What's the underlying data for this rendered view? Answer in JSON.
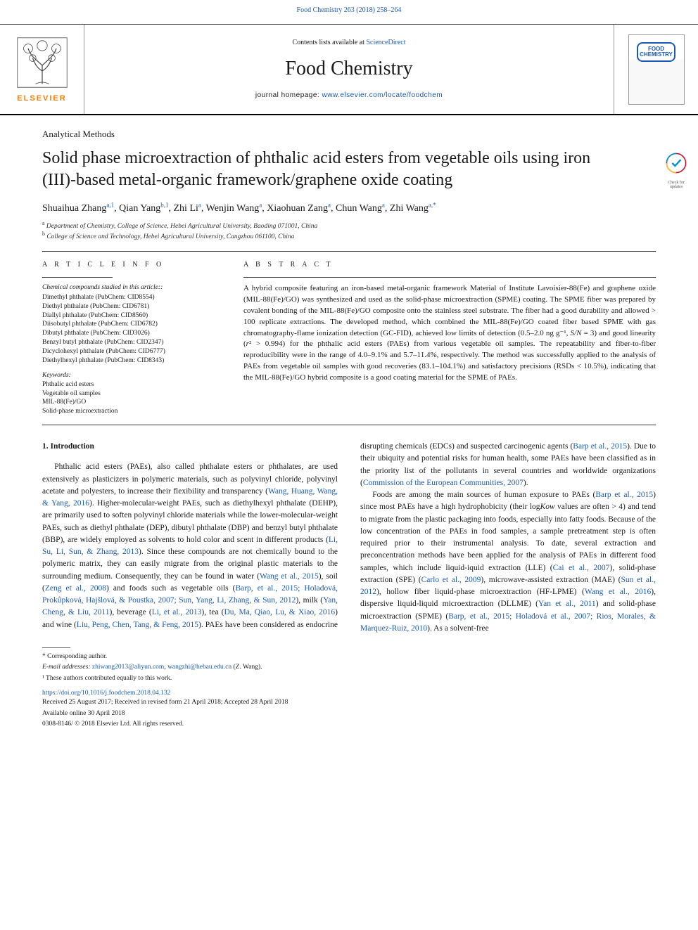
{
  "header": {
    "top_citation": "Food Chemistry 263 (2018) 258–264",
    "contents_prefix": "Contents lists available at ",
    "contents_link": "ScienceDirect",
    "journal": "Food Chemistry",
    "homepage_prefix": "journal homepage: ",
    "homepage_url": "www.elsevier.com/locate/foodchem",
    "publisher_mark": "ELSEVIER",
    "cover_text": "FOOD\nCHEMISTRY"
  },
  "section": "Analytical Methods",
  "title": "Solid phase microextraction of phthalic acid esters from vegetable oils using iron (III)-based metal-organic framework/graphene oxide coating",
  "crossmark": "Check for updates",
  "authors_html": "Shuaihua Zhang<sup>a,1</sup>, Qian Yang<sup>b,1</sup>, Zhi Li<sup>a</sup>, Wenjin Wang<sup>a</sup>, Xiaohuan Zang<sup>a</sup>, Chun Wang<sup>a</sup>, Zhi Wang<sup>a,*</sup>",
  "affiliations": [
    {
      "sup": "a",
      "text": "Department of Chemistry, College of Science, Hebei Agricultural University, Baoding 071001, China"
    },
    {
      "sup": "b",
      "text": "College of Science and Technology, Hebei Agricultural University, Cangzhou 061100, China"
    }
  ],
  "article_info_label": "A R T I C L E  I N F O",
  "abstract_label": "A B S T R A C T",
  "compounds_heading": "Chemical compounds studied in this article::",
  "compounds": [
    "Dimethyl phthalate (PubChem: CID8554)",
    "Diethyl phthalate (PubChem: CID6781)",
    "Diallyl phthalate (PubChem: CID8560)",
    "Diisobutyl phthalate (PubChem: CID6782)",
    "Dibutyl phthalate (PubChem: CID3026)",
    "Benzyl butyl phthalate (PubChem: CID2347)",
    "Dicyclohexyl phthalate (PubChem: CID6777)",
    "Diethylhexyl phthalate (PubChem: CID8343)"
  ],
  "keywords_heading": "Keywords:",
  "keywords": [
    "Phthalic acid esters",
    "Vegetable oil samples",
    "MIL-88(Fe)/GO",
    "Solid-phase microextraction"
  ],
  "abstract": "A hybrid composite featuring an iron-based metal-organic framework Material of Institute Lavoisier-88(Fe) and graphene oxide (MIL-88(Fe)/GO) was synthesized and used as the solid-phase microextraction (SPME) coating. The SPME fiber was prepared by covalent bonding of the MIL-88(Fe)/GO composite onto the stainless steel substrate. The fiber had a good durability and allowed > 100 replicate extractions. The developed method, which combined the MIL-88(Fe)/GO coated fiber based SPME with gas chromatography-flame ionization detection (GC-FID), achieved low limits of detection (0.5–2.0 ng g⁻¹, S/N = 3) and good linearity (r² > 0.994) for the phthalic acid esters (PAEs) from various vegetable oil samples. The repeatability and fiber-to-fiber reproducibility were in the range of 4.0–9.1% and 5.7–11.4%, respectively. The method was successfully applied to the analysis of PAEs from vegetable oil samples with good recoveries (83.1–104.1%) and satisfactory precisions (RSDs < 10.5%), indicating that the MIL-88(Fe)/GO hybrid composite is a good coating material for the SPME of PAEs.",
  "intro_heading": "1. Introduction",
  "intro_para1_a": "Phthalic acid esters (PAEs), also called phthalate esters or phthalates, are used extensively as plasticizers in polymeric materials, such as polyvinyl chloride, polyvinyl acetate and polyesters, to increase their flexibility and transparency (",
  "intro_para1_b": "). Higher-molecular-weight PAEs, such as diethylhexyl phthalate (DEHP), are primarily used to soften polyvinyl chloride materials while the lower-molecular-weight PAEs, such as diethyl phthalate (DEP), dibutyl phthalate (DBP) and benzyl butyl phthalate (BBP), are widely employed as solvents to hold color and scent in different products (",
  "intro_para1_c": "). Since these compounds are not chemically bound to the polymeric matrix, they can easily migrate from the original plastic materials to the surrounding medium. Consequently, they can be found in water (",
  "intro_para1_d": "), soil (",
  "intro_para1_e": ") and foods such as vegetable oils (",
  "intro_para1_f": "), milk (",
  "intro_para1_g": "), beverage (",
  "intro_para1_h": "), tea (",
  "intro_para1_i": ") and wine (",
  "intro_para1_j": "). PAEs have been ",
  "intro_para1_k": "considered as endocrine disrupting chemicals (EDCs) and suspected carcinogenic agents (",
  "intro_para1_l": "). Due to their ubiquity and potential risks for human health, some PAEs have been classified as in the priority list of the pollutants in several countries and worldwide organizations (",
  "intro_para1_m": ").",
  "intro_para2_a": "Foods are among the main sources of human exposure to PAEs (",
  "intro_para2_b": ") since most PAEs have a high hydrophobicity (their log",
  "intro_para2_c": " values are often > 4) and tend to migrate from the plastic packaging into foods, especially into fatty foods. Because of the low concentration of the PAEs in food samples, a sample pretreatment step is often required prior to their instrumental analysis. To date, several extraction and preconcentration methods have been applied for the analysis of PAEs in different food samples, which include liquid-iquid extraction (LLE) (",
  "intro_para2_d": "), solid-phase extraction (SPE) (",
  "intro_para2_e": "), microwave-assisted extraction (MAE) (",
  "intro_para2_f": "), hollow fiber liquid-phase microextraction (HF-LPME) (",
  "intro_para2_g": "), dispersive liquid-liquid microextraction (DLLME) (",
  "intro_para2_h": ") and solid-phase microextraction (SPME) (",
  "intro_para2_i": "). As a solvent-free",
  "cites": {
    "c1": "Wang, Huang, Wang, & Yang, 2016",
    "c2": "Li, Su, Li, Sun, & Zhang, 2013",
    "c3": "Wang et al., 2015",
    "c4": "Zeng et al., 2008",
    "c5": "Barp, et al., 2015; Holadová, Prokůpková, Hajšlová, & Poustka, 2007; Sun, Yang, Li, Zhang, & Sun, 2012",
    "c6": "Yan, Cheng, & Liu, 2011",
    "c7": "Li, et al., 2013",
    "c8": "Du, Ma, Qiao, Lu, & Xiao, 2016",
    "c9": "Liu, Peng, Chen, Tang, & Feng, 2015",
    "c10": "Barp et al., 2015",
    "c11": "Commission of the European Communities, 2007",
    "c12": "Barp et al., 2015",
    "c13": "Cai et al., 2007",
    "c14": "Carlo et al., 2009",
    "c15": "Sun et al., 2012",
    "c16": "Wang et al., 2016",
    "c17": "Yan et al., 2011",
    "c18": "Barp, et al., 2015; Holadová et al., 2007; Rios, Morales, & Marquez-Ruiz, 2010"
  },
  "kow": "Kow",
  "footer": {
    "corr": "* Corresponding author.",
    "email_label": "E-mail addresses: ",
    "email1": "zhiwang2013@aliyun.com",
    "email_sep": ", ",
    "email2": "wangzhi@hebau.edu.cn",
    "email_tail": " (Z. Wang).",
    "equal": "¹ These authors contributed equally to this work.",
    "doi": "https://doi.org/10.1016/j.foodchem.2018.04.132",
    "received": "Received 25 August 2017; Received in revised form 21 April 2018; Accepted 28 April 2018",
    "online": "Available online 30 April 2018",
    "copyright": "0308-8146/ © 2018 Elsevier Ltd. All rights reserved."
  },
  "colors": {
    "link": "#1b5ab4",
    "elsevier_orange": "#ff7a00",
    "rule": "#333333"
  }
}
